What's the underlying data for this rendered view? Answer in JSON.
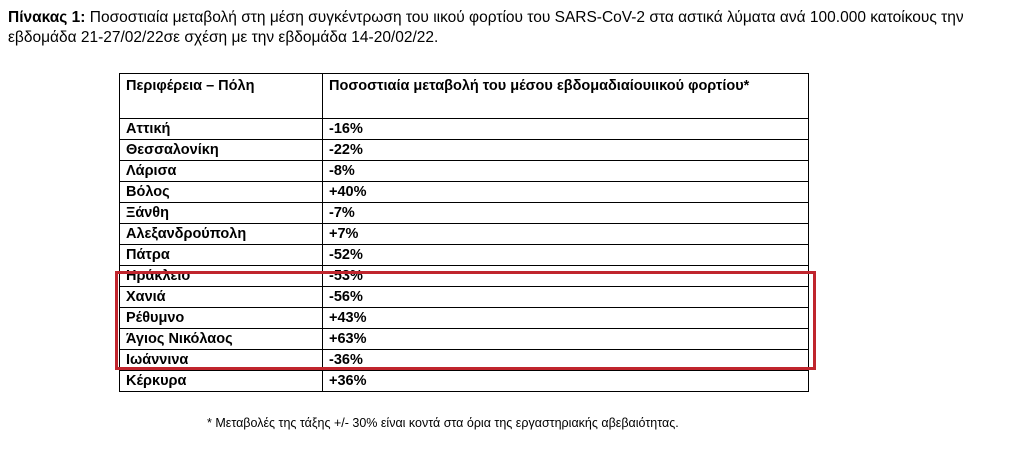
{
  "caption": {
    "label": "Πίνακας 1:",
    "text": "Ποσοστιαία μεταβολή στη μέση συγκέντρωση του ιικού φορτίου του SARS-CoV-2 στα αστικά λύματα ανά 100.000 κατοίκους την εβδομάδα 21-27/02/22σε σχέση με την εβδομάδα 14-20/02/22."
  },
  "table": {
    "headers": [
      "Περιφέρεια – Πόλη",
      "Ποσοστιαία μεταβολή του μέσου εβδομαδιαίουιικού φορτίου*"
    ],
    "rows": [
      {
        "city": "Αττική",
        "change": "-16%"
      },
      {
        "city": "Θεσσαλονίκη",
        "change": "-22%"
      },
      {
        "city": "Λάρισα",
        "change": "-8%"
      },
      {
        "city": "Βόλος",
        "change": "+40%"
      },
      {
        "city": "Ξάνθη",
        "change": "-7%"
      },
      {
        "city": "Αλεξανδρούπολη",
        "change": "+7%"
      },
      {
        "city": "Πάτρα",
        "change": "-52%"
      },
      {
        "city": "Ηράκλειο",
        "change": "-53%"
      },
      {
        "city": "Χανιά",
        "change": "-56%"
      },
      {
        "city": "Ρέθυμνο",
        "change": "+43%"
      },
      {
        "city": "Άγιος Νικόλαος",
        "change": "+63%"
      },
      {
        "city": "Ιωάννινα",
        "change": "-36%"
      },
      {
        "city": "Κέρκυρα",
        "change": "+36%"
      }
    ]
  },
  "highlight_color": "#c0252d",
  "footnote": "* Μεταβολές της τάξης +/- 30% είναι κοντά στα όρια της εργαστηριακής αβεβαιότητας."
}
